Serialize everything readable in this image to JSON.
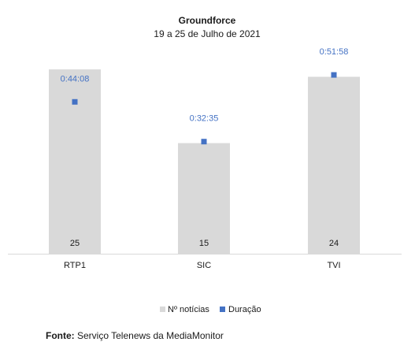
{
  "chart_data": {
    "type": "bar",
    "title": "Groundforce",
    "subtitle": "19 a 25 de Julho de 2021",
    "categories": [
      "RTP1",
      "SIC",
      "TVI"
    ],
    "series": [
      {
        "name": "Nº notícias",
        "kind": "bar",
        "color": "#d9d9d9",
        "values": [
          25,
          15,
          24
        ],
        "labels": [
          "25",
          "15",
          "24"
        ]
      },
      {
        "name": "Duração",
        "kind": "marker",
        "color": "#4472c4",
        "values": [
          "0:44:08",
          "0:32:35",
          "0:51:58"
        ],
        "seconds": [
          2648,
          1955,
          3118
        ]
      }
    ],
    "legend_position": "bottom",
    "grid": false
  },
  "source": {
    "label": "Fonte:",
    "text": "Serviço Telenews da MediaMonitor"
  }
}
